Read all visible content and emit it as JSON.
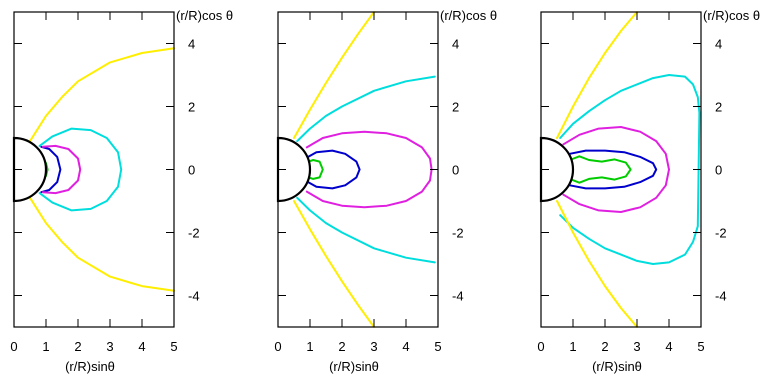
{
  "chart_data": [
    {
      "type": "line",
      "xlabel": "(r/R)sinθ",
      "ylabel": "(r/R)cos θ",
      "xlim": [
        0,
        5
      ],
      "ylim": [
        -5,
        5
      ],
      "xticks": [
        "0",
        "1",
        "2",
        "3",
        "4",
        "5"
      ],
      "yticks": [
        "4",
        "2",
        "0",
        "-2",
        "-4"
      ],
      "grid": false,
      "series": [
        {
          "color": "#00cc00",
          "x": [
            0.6,
            0.85,
            1.0,
            1.05,
            1.0,
            0.85,
            0.6
          ],
          "y": [
            0.5,
            0.4,
            0.2,
            0.0,
            -0.2,
            -0.4,
            -0.5
          ]
        },
        {
          "color": "#0000cc",
          "x": [
            0.85,
            1.1,
            1.35,
            1.45,
            1.35,
            1.1,
            0.85
          ],
          "y": [
            0.72,
            0.65,
            0.4,
            0.0,
            -0.4,
            -0.65,
            -0.72
          ]
        },
        {
          "color": "#e020e0",
          "x": [
            0.9,
            1.3,
            1.7,
            2.0,
            2.07,
            2.0,
            1.7,
            1.3,
            0.9
          ],
          "y": [
            0.72,
            0.75,
            0.65,
            0.35,
            0.0,
            -0.35,
            -0.65,
            -0.75,
            -0.72
          ]
        },
        {
          "color": "#00dddd",
          "x": [
            0.8,
            1.2,
            1.8,
            2.4,
            2.9,
            3.25,
            3.35,
            3.25,
            2.9,
            2.4,
            1.8,
            1.2,
            0.8
          ],
          "y": [
            0.75,
            1.05,
            1.3,
            1.25,
            1.0,
            0.55,
            0.0,
            -0.55,
            -1.0,
            -1.25,
            -1.3,
            -1.05,
            -0.75
          ]
        },
        {
          "color": "#ffee00",
          "x": [
            0.5,
            1.0,
            1.5,
            2.0,
            3.0,
            4.0,
            5.0
          ],
          "y": [
            0.9,
            1.7,
            2.3,
            2.8,
            3.4,
            3.7,
            3.85
          ]
        },
        {
          "color": "#ffee00",
          "x": [
            0.5,
            1.0,
            1.5,
            2.0,
            3.0,
            4.0,
            5.0
          ],
          "y": [
            -0.9,
            -1.7,
            -2.3,
            -2.8,
            -3.4,
            -3.7,
            -3.85
          ]
        }
      ]
    },
    {
      "type": "line",
      "xlabel": "(r/R)sinθ",
      "ylabel": "(r/R)cos θ",
      "xlim": [
        0,
        5
      ],
      "ylim": [
        -5,
        5
      ],
      "xticks": [
        "0",
        "1",
        "2",
        "3",
        "4",
        "5"
      ],
      "yticks": [
        "4",
        "2",
        "0",
        "-2",
        "-4"
      ],
      "grid": false,
      "series": [
        {
          "color": "#00cc00",
          "x": [
            0.8,
            1.1,
            1.3,
            1.4,
            1.3,
            1.1,
            0.8
          ],
          "y": [
            0.2,
            0.3,
            0.25,
            0.0,
            -0.25,
            -0.3,
            -0.2
          ]
        },
        {
          "color": "#0000cc",
          "x": [
            0.85,
            1.2,
            1.7,
            2.1,
            2.45,
            2.55,
            2.45,
            2.1,
            1.7,
            1.2,
            0.85
          ],
          "y": [
            0.35,
            0.55,
            0.6,
            0.5,
            0.25,
            0.0,
            -0.25,
            -0.5,
            -0.6,
            -0.55,
            -0.35
          ]
        },
        {
          "color": "#e020e0",
          "x": [
            0.9,
            1.4,
            2.0,
            2.7,
            3.4,
            4.0,
            4.5,
            4.75,
            4.8,
            4.75,
            4.5,
            4.0,
            3.4,
            2.7,
            2.0,
            1.4,
            0.9
          ],
          "y": [
            0.7,
            1.0,
            1.15,
            1.2,
            1.15,
            1.0,
            0.7,
            0.35,
            0.0,
            -0.35,
            -0.7,
            -1.0,
            -1.15,
            -1.2,
            -1.15,
            -1.0,
            -0.7
          ]
        },
        {
          "color": "#00dddd",
          "x": [
            0.6,
            1.0,
            1.5,
            2.0,
            3.0,
            4.0,
            4.9
          ],
          "y": [
            0.9,
            1.3,
            1.7,
            2.0,
            2.5,
            2.8,
            2.95
          ]
        },
        {
          "color": "#00dddd",
          "x": [
            0.6,
            1.0,
            1.5,
            2.0,
            3.0,
            4.0,
            4.9
          ],
          "y": [
            -0.9,
            -1.3,
            -1.7,
            -2.0,
            -2.5,
            -2.8,
            -2.95
          ]
        },
        {
          "color": "#ffee00",
          "x": [
            0.5,
            1.0,
            1.5,
            2.0,
            2.5,
            3.0
          ],
          "y": [
            1.0,
            1.9,
            2.75,
            3.55,
            4.3,
            5.0
          ]
        },
        {
          "color": "#ffee00",
          "x": [
            0.5,
            1.0,
            1.5,
            2.0,
            2.5,
            3.0
          ],
          "y": [
            -1.0,
            -1.9,
            -2.75,
            -3.55,
            -4.3,
            -5.0
          ]
        }
      ]
    },
    {
      "type": "line",
      "xlabel": "(r/R)sinθ",
      "ylabel": "(r/R)cos θ",
      "xlim": [
        0,
        5
      ],
      "ylim": [
        -5,
        5
      ],
      "xticks": [
        "0",
        "1",
        "2",
        "3",
        "4",
        "5"
      ],
      "yticks": [
        "4",
        "2",
        "0",
        "-2",
        "-4"
      ],
      "grid": false,
      "series": [
        {
          "color": "#00cc00",
          "x": [
            0.9,
            1.2,
            1.5,
            1.9,
            2.3,
            2.65,
            2.8,
            2.65,
            2.3,
            1.9,
            1.5,
            1.2,
            0.9
          ],
          "y": [
            0.3,
            0.42,
            0.3,
            0.25,
            0.32,
            0.22,
            0.0,
            -0.22,
            -0.32,
            -0.25,
            -0.3,
            -0.42,
            -0.3
          ]
        },
        {
          "color": "#0000cc",
          "x": [
            0.9,
            1.4,
            2.0,
            2.6,
            3.1,
            3.5,
            3.6,
            3.5,
            3.1,
            2.6,
            2.0,
            1.4,
            0.9
          ],
          "y": [
            0.5,
            0.6,
            0.6,
            0.55,
            0.4,
            0.2,
            0.0,
            -0.2,
            -0.4,
            -0.55,
            -0.6,
            -0.6,
            -0.5
          ]
        },
        {
          "color": "#e020e0",
          "x": [
            0.7,
            1.2,
            1.8,
            2.5,
            3.1,
            3.6,
            3.9,
            4.0,
            3.9,
            3.6,
            3.1,
            2.5,
            1.8,
            1.2,
            0.7
          ],
          "y": [
            0.8,
            1.1,
            1.3,
            1.35,
            1.2,
            0.9,
            0.5,
            0.0,
            -0.5,
            -0.9,
            -1.2,
            -1.35,
            -1.3,
            -1.1,
            -0.8
          ]
        },
        {
          "color": "#00dddd",
          "x": [
            0.6,
            1.0,
            1.5,
            2.0,
            2.5,
            3.0,
            3.5,
            4.0,
            4.5,
            4.75,
            4.9,
            4.95,
            4.9,
            4.75,
            4.5,
            4.0,
            3.5,
            3.0,
            2.5,
            2.0,
            1.5,
            1.0,
            0.6
          ],
          "y": [
            1.0,
            1.45,
            1.85,
            2.2,
            2.5,
            2.7,
            2.9,
            3.0,
            2.95,
            2.7,
            2.3,
            1.8,
            -1.8,
            -2.3,
            -2.7,
            -2.95,
            -3.0,
            -2.9,
            -2.7,
            -2.5,
            -2.2,
            -1.85,
            -1.45
          ]
        },
        {
          "color": "#ffee00",
          "x": [
            0.5,
            1.0,
            1.5,
            2.0,
            2.5,
            3.0
          ],
          "y": [
            1.0,
            2.0,
            2.9,
            3.7,
            4.4,
            5.0
          ]
        },
        {
          "color": "#ffee00",
          "x": [
            0.5,
            1.0,
            1.5,
            2.0,
            2.5,
            3.0
          ],
          "y": [
            -1.0,
            -2.0,
            -2.9,
            -3.7,
            -4.4,
            -5.0
          ]
        }
      ]
    }
  ]
}
